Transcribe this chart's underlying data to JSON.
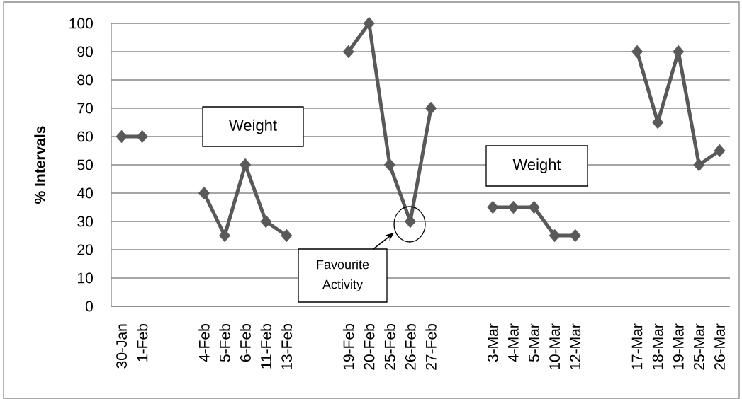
{
  "chart_data": {
    "type": "line",
    "ylabel": "% Intervals",
    "categories": [
      "30-Jan",
      "1-Feb",
      null,
      null,
      "4-Feb",
      "5-Feb",
      "6-Feb",
      "11-Feb",
      "13-Feb",
      null,
      null,
      "19-Feb",
      "20-Feb",
      "25-Feb",
      "26-Feb",
      "27-Feb",
      null,
      null,
      "3-Mar",
      "4-Mar",
      "5-Mar",
      "10-Mar",
      "12-Mar",
      null,
      null,
      "17-Mar",
      "18-Mar",
      "19-Mar",
      "25-Mar",
      "26-Mar"
    ],
    "values": [
      60,
      60,
      null,
      null,
      40,
      25,
      50,
      30,
      25,
      null,
      null,
      90,
      100,
      50,
      30,
      70,
      null,
      null,
      35,
      35,
      35,
      25,
      25,
      null,
      null,
      90,
      65,
      90,
      50,
      55
    ],
    "color": "#595959",
    "ylim": [
      0,
      100
    ],
    "yticks": [
      0,
      10,
      20,
      30,
      40,
      50,
      60,
      70,
      80,
      90,
      100
    ],
    "grid": "y",
    "marker": "diamond",
    "line_style": "solid",
    "annotations": [
      "Weight",
      "Weight",
      "Favourite Activity"
    ]
  }
}
